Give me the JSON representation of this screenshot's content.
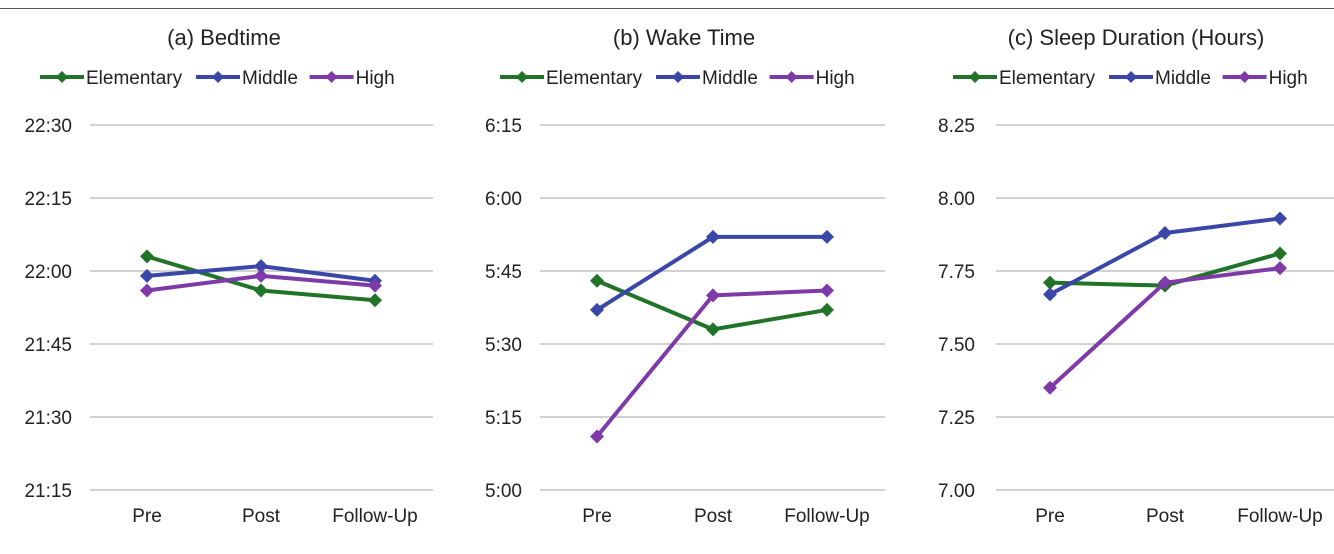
{
  "colors": {
    "Elementary": "#217327",
    "Middle": "#3a46a8",
    "High": "#7d3aa8",
    "grid": "#b8b8b8"
  },
  "chart_data": [
    {
      "type": "line",
      "title": "(a) Bedtime",
      "categories": [
        "Pre",
        "Post",
        "Follow-Up"
      ],
      "yticks": [
        "21:15",
        "21:30",
        "21:45",
        "22:00",
        "22:15",
        "22:30"
      ],
      "ylim": [
        "21:15",
        "22:30"
      ],
      "legend": "top",
      "grid": true,
      "series": [
        {
          "name": "Elementary",
          "values": [
            "22:03",
            "21:56",
            "21:54"
          ]
        },
        {
          "name": "Middle",
          "values": [
            "21:59",
            "22:01",
            "21:58"
          ]
        },
        {
          "name": "High",
          "values": [
            "21:56",
            "21:59",
            "21:57"
          ]
        }
      ]
    },
    {
      "type": "line",
      "title": "(b) Wake Time",
      "categories": [
        "Pre",
        "Post",
        "Follow-Up"
      ],
      "yticks": [
        "5:00",
        "5:15",
        "5:30",
        "5:45",
        "6:00",
        "6:15"
      ],
      "ylim": [
        "5:00",
        "6:15"
      ],
      "legend": "top",
      "grid": true,
      "series": [
        {
          "name": "Elementary",
          "values": [
            "5:43",
            "5:33",
            "5:37"
          ]
        },
        {
          "name": "Middle",
          "values": [
            "5:37",
            "5:52",
            "5:52"
          ]
        },
        {
          "name": "High",
          "values": [
            "5:11",
            "5:40",
            "5:41"
          ]
        }
      ]
    },
    {
      "type": "line",
      "title": "(c) Sleep Duration (Hours)",
      "categories": [
        "Pre",
        "Post",
        "Follow-Up"
      ],
      "yticks": [
        "7.00",
        "7.25",
        "7.50",
        "7.75",
        "8.00",
        "8.25"
      ],
      "ylim": [
        7.0,
        8.25
      ],
      "legend": "top",
      "grid": true,
      "series": [
        {
          "name": "Elementary",
          "values": [
            7.71,
            7.7,
            7.81
          ]
        },
        {
          "name": "Middle",
          "values": [
            7.67,
            7.88,
            7.93
          ]
        },
        {
          "name": "High",
          "values": [
            7.35,
            7.71,
            7.76
          ]
        }
      ]
    }
  ]
}
